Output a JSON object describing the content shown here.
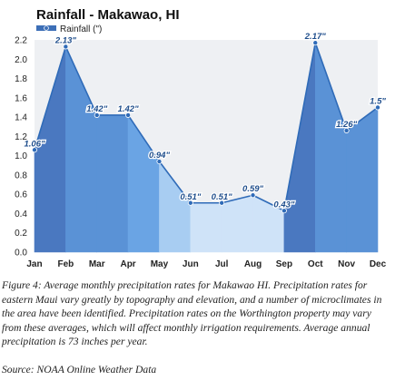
{
  "chart_data": {
    "type": "area",
    "title": "Rainfall - Makawao, HI",
    "legend": "Rainfall (\")",
    "legend_position": "top-left",
    "categories": [
      "Jan",
      "Feb",
      "Mar",
      "Apr",
      "May",
      "Jun",
      "Jul",
      "Aug",
      "Sep",
      "Oct",
      "Nov",
      "Dec"
    ],
    "values": [
      1.06,
      2.13,
      1.42,
      1.42,
      0.94,
      0.51,
      0.51,
      0.59,
      0.43,
      2.17,
      1.26,
      1.5
    ],
    "data_labels": [
      "1.06\"",
      "2.13\"",
      "1.42\"",
      "1.42\"",
      "0.94\"",
      "0.51\"",
      "0.51\"",
      "0.59\"",
      "0.43\"",
      "2.17\"",
      "1.26\"",
      "1.5\""
    ],
    "yticks": [
      "0.0",
      "0.2",
      "0.4",
      "0.6",
      "0.8",
      "1.0",
      "1.2",
      "1.4",
      "1.6",
      "1.8",
      "2.0",
      "2.2"
    ],
    "ylim": [
      0,
      2.2
    ],
    "grid": false,
    "segment_colors": [
      "#4a78c0",
      "#5a92d6",
      "#5a92d6",
      "#6aa4e4",
      "#a8cdf2",
      "#cfe3f8",
      "#cfe3f8",
      "#cfe3f8",
      "#4a78c0",
      "#5a92d6",
      "#5a92d6",
      "#6aa4e4"
    ],
    "line_color": "#2f6bb8",
    "plot_background": "#eef0f3"
  },
  "caption": "Figure 4: Average monthly precipitation rates for Makawao HI.  Precipitation rates for eastern Maui vary greatly by topography and elevation, and a number of microclimates in the area have been identified.  Precipitation rates on the Worthington property may vary from these averages, which will affect monthly irrigation requirements.  Average annual precipitation is 73 inches per year.",
  "source": "Source: NOAA Online Weather Data"
}
